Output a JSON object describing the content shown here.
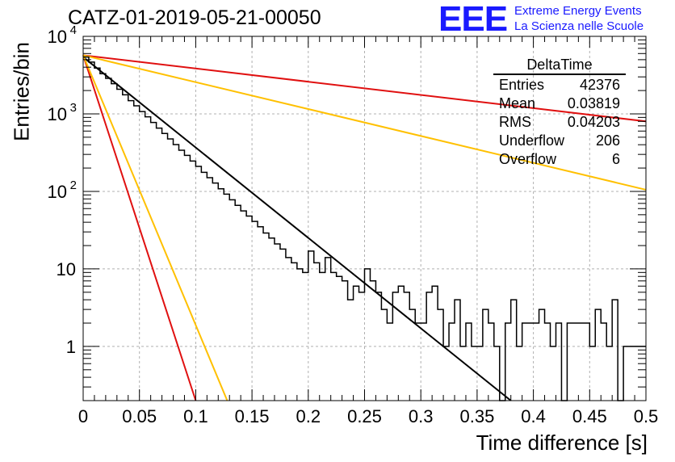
{
  "header": {
    "title": "CATZ-01-2019-05-21-00050",
    "logo": "EEE",
    "logo_line1": "Extreme Energy Events",
    "logo_line2": "La Scienza nelle Scuole"
  },
  "stats_box": {
    "name": "DeltaTime",
    "rows": [
      {
        "label": "Entries",
        "value": "42376"
      },
      {
        "label": "Mean",
        "value": "0.03819"
      },
      {
        "label": "RMS",
        "value": "0.04203"
      },
      {
        "label": "Underflow",
        "value": "206"
      },
      {
        "label": "Overflow",
        "value": "6"
      }
    ]
  },
  "chart_data": {
    "type": "line",
    "xlabel": "Time difference [s]",
    "ylabel": "Entries/bin",
    "xlim": [
      0,
      0.5
    ],
    "ylim": [
      0.2,
      10000
    ],
    "yscale": "log",
    "grid": true,
    "x_ticks": [
      "0",
      "0.05",
      "0.1",
      "0.15",
      "0.2",
      "0.25",
      "0.3",
      "0.35",
      "0.4",
      "0.45",
      "0.5"
    ],
    "y_ticks": [
      {
        "value": 1,
        "label": "1"
      },
      {
        "value": 10,
        "label": "10"
      },
      {
        "value": 100,
        "label": "10",
        "exp": "2"
      },
      {
        "value": 1000,
        "label": "10",
        "exp": "3"
      },
      {
        "value": 10000,
        "label": "10",
        "exp": "4"
      }
    ],
    "histogram": {
      "bin_width": 0.005,
      "color": "#000000",
      "values": [
        5400,
        4650,
        3900,
        3300,
        2870,
        2450,
        2080,
        1760,
        1480,
        1270,
        1070,
        915,
        775,
        655,
        558,
        475,
        402,
        340,
        291,
        246,
        210,
        176,
        150,
        128,
        108,
        92,
        78,
        66,
        56,
        48,
        41,
        35,
        29,
        25,
        21,
        18,
        14,
        12,
        10,
        9,
        17,
        12,
        9,
        14,
        9,
        8,
        7,
        4,
        6,
        5,
        10,
        7,
        5,
        3,
        2,
        5,
        6,
        5,
        3,
        2,
        2,
        5,
        6,
        3,
        1,
        2,
        4,
        1,
        2,
        1,
        1,
        3,
        2,
        1,
        0,
        2,
        4,
        1,
        2,
        2,
        2,
        3,
        2,
        1,
        2,
        0,
        2,
        2,
        2,
        2,
        1,
        3,
        2,
        1,
        4,
        0,
        1,
        1,
        1,
        1
      ]
    },
    "fits": [
      {
        "color": "#000000",
        "x": [
          0,
          0.38
        ],
        "y": [
          5400,
          0.2
        ]
      },
      {
        "color": "#e01010",
        "x": [
          0,
          0.5
        ],
        "y": [
          5700,
          800
        ]
      },
      {
        "color": "#ffc000",
        "x": [
          0,
          0.5
        ],
        "y": [
          5700,
          105
        ]
      },
      {
        "color": "#e01010",
        "x": [
          0,
          0.1
        ],
        "y": [
          5700,
          0.2
        ]
      },
      {
        "color": "#ffc000",
        "x": [
          0,
          0.128
        ],
        "y": [
          5700,
          0.2
        ]
      }
    ]
  }
}
